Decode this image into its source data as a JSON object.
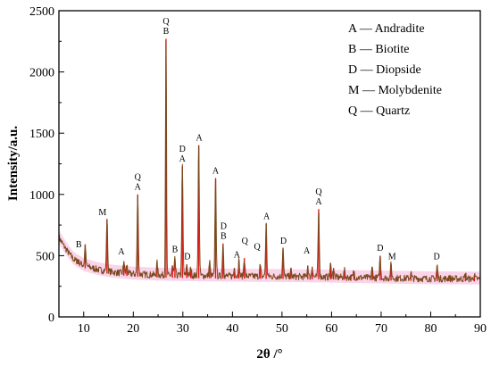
{
  "chart_data": {
    "type": "line",
    "xlabel": "2θ /°",
    "ylabel": "Intensity/a.u.",
    "xlim": [
      5,
      90
    ],
    "ylim": [
      0,
      2500
    ],
    "xticks": [
      10,
      20,
      30,
      40,
      50,
      60,
      70,
      80,
      90
    ],
    "yticks": [
      0,
      500,
      1000,
      1500,
      2000,
      2500
    ],
    "grid": false,
    "legend_position": "top-right",
    "legend": [
      {
        "key": "A",
        "dash": "—",
        "name": "Andradite"
      },
      {
        "key": "B",
        "dash": "—",
        "name": "Biotite"
      },
      {
        "key": "D",
        "dash": "—",
        "name": "Diopside"
      },
      {
        "key": "M",
        "dash": "—",
        "name": "Molybdenite"
      },
      {
        "key": "Q",
        "dash": "—",
        "name": "Quartz"
      }
    ],
    "series": [
      {
        "color": "#7a4a1e",
        "band_color": "#f7b8dc",
        "peak_color": "#e01a1a",
        "baseline": [
          [
            5,
            650
          ],
          [
            6,
            580
          ],
          [
            7,
            520
          ],
          [
            8,
            470
          ],
          [
            10,
            420
          ],
          [
            13,
            385
          ],
          [
            16,
            365
          ],
          [
            20,
            350
          ],
          [
            25,
            342
          ],
          [
            30,
            338
          ],
          [
            40,
            333
          ],
          [
            50,
            330
          ],
          [
            60,
            325
          ],
          [
            70,
            318
          ],
          [
            80,
            312
          ],
          [
            90,
            310
          ]
        ],
        "peaks": [
          {
            "x": 8.8,
            "y": 470
          },
          {
            "x": 10.3,
            "y": 590
          },
          {
            "x": 14.7,
            "y": 800
          },
          {
            "x": 18.1,
            "y": 455
          },
          {
            "x": 18.7,
            "y": 420
          },
          {
            "x": 20.9,
            "y": 1000
          },
          {
            "x": 24.8,
            "y": 440
          },
          {
            "x": 26.6,
            "y": 2270
          },
          {
            "x": 27.9,
            "y": 410
          },
          {
            "x": 28.4,
            "y": 470
          },
          {
            "x": 29.9,
            "y": 1230
          },
          {
            "x": 30.8,
            "y": 430
          },
          {
            "x": 31.6,
            "y": 400
          },
          {
            "x": 33.2,
            "y": 1400
          },
          {
            "x": 35.4,
            "y": 450
          },
          {
            "x": 36.6,
            "y": 1130
          },
          {
            "x": 38.1,
            "y": 600
          },
          {
            "x": 40.4,
            "y": 400
          },
          {
            "x": 41.3,
            "y": 460
          },
          {
            "x": 42.4,
            "y": 480
          },
          {
            "x": 45.6,
            "y": 420
          },
          {
            "x": 46.8,
            "y": 760
          },
          {
            "x": 50.2,
            "y": 560
          },
          {
            "x": 51.8,
            "y": 380
          },
          {
            "x": 55.2,
            "y": 420
          },
          {
            "x": 56.1,
            "y": 410
          },
          {
            "x": 57.4,
            "y": 880
          },
          {
            "x": 59.8,
            "y": 430
          },
          {
            "x": 60.4,
            "y": 400
          },
          {
            "x": 62.6,
            "y": 380
          },
          {
            "x": 64.5,
            "y": 370
          },
          {
            "x": 68.2,
            "y": 400
          },
          {
            "x": 69.8,
            "y": 500
          },
          {
            "x": 72.0,
            "y": 430
          },
          {
            "x": 76.0,
            "y": 360
          },
          {
            "x": 81.3,
            "y": 420
          },
          {
            "x": 83.7,
            "y": 330
          },
          {
            "x": 87.0,
            "y": 350
          },
          {
            "x": 88.8,
            "y": 340
          }
        ]
      }
    ],
    "annotations": [
      {
        "x": 9.0,
        "y": 540,
        "lines": [
          "B"
        ]
      },
      {
        "x": 13.8,
        "y": 800,
        "lines": [
          "M"
        ]
      },
      {
        "x": 17.6,
        "y": 480,
        "lines": [
          "A"
        ]
      },
      {
        "x": 20.9,
        "y": 1010,
        "lines": [
          "Q",
          "A"
        ]
      },
      {
        "x": 26.6,
        "y": 2280,
        "lines": [
          "Q",
          "B"
        ]
      },
      {
        "x": 28.4,
        "y": 500,
        "lines": [
          "B"
        ]
      },
      {
        "x": 29.9,
        "y": 1240,
        "lines": [
          "D",
          "A"
        ]
      },
      {
        "x": 30.9,
        "y": 440,
        "lines": [
          "D"
        ]
      },
      {
        "x": 33.3,
        "y": 1410,
        "lines": [
          "A"
        ]
      },
      {
        "x": 36.6,
        "y": 1140,
        "lines": [
          "A"
        ]
      },
      {
        "x": 38.2,
        "y": 610,
        "lines": [
          "D",
          "B"
        ]
      },
      {
        "x": 40.9,
        "y": 455,
        "lines": [
          "A"
        ]
      },
      {
        "x": 42.5,
        "y": 570,
        "lines": [
          "Q"
        ]
      },
      {
        "x": 45.0,
        "y": 520,
        "lines": [
          "Q"
        ]
      },
      {
        "x": 46.9,
        "y": 770,
        "lines": [
          "A"
        ]
      },
      {
        "x": 50.3,
        "y": 570,
        "lines": [
          "D"
        ]
      },
      {
        "x": 55.0,
        "y": 490,
        "lines": [
          "A"
        ]
      },
      {
        "x": 57.4,
        "y": 890,
        "lines": [
          "Q",
          "A"
        ]
      },
      {
        "x": 69.8,
        "y": 510,
        "lines": [
          "D"
        ]
      },
      {
        "x": 72.2,
        "y": 440,
        "lines": [
          "M"
        ]
      },
      {
        "x": 81.2,
        "y": 440,
        "lines": [
          "D"
        ]
      }
    ]
  }
}
